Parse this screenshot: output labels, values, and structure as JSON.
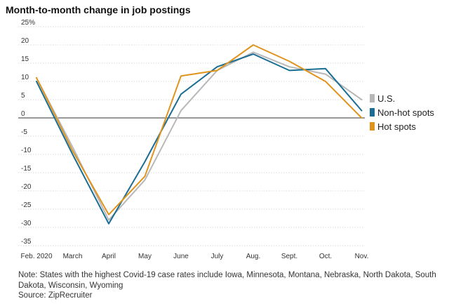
{
  "title": "Month-to-month change in job postings",
  "note": "Note: States with the highest Covid-19 case rates include Iowa, Minnesota, Montana, Nebraska, North Dakota, South Dakota, Wisconsin, Wyoming",
  "source": "Source: ZipRecruiter",
  "chart_data": {
    "type": "line",
    "title": "Month-to-month change in job postings",
    "categories": [
      "Feb. 2020",
      "March",
      "April",
      "May",
      "June",
      "July",
      "Aug.",
      "Sept.",
      "Oct.",
      "Nov."
    ],
    "y_ticks": [
      25,
      20,
      15,
      10,
      5,
      0,
      -5,
      -10,
      -15,
      -20,
      -25,
      -30,
      -35
    ],
    "y_tick_labels": [
      "25%",
      "20",
      "15",
      "10",
      "5",
      "0",
      "-5",
      "-10",
      "-15",
      "-20",
      "-25",
      "-30",
      "-35"
    ],
    "ylim": [
      -35,
      25
    ],
    "grid": true,
    "legend_position": "right",
    "series": [
      {
        "name": "U.S.",
        "color": "#b8b8b8",
        "values": [
          11,
          -8,
          -28,
          -17,
          2,
          13,
          18,
          14,
          12,
          5
        ]
      },
      {
        "name": "Non-hot spots",
        "color": "#1a6e94",
        "values": [
          10,
          -10,
          -29,
          -12,
          6.5,
          14,
          17.5,
          13,
          13.5,
          2
        ]
      },
      {
        "name": "Hot spots",
        "color": "#e0941e",
        "values": [
          11,
          -9,
          -26.5,
          -16,
          11.5,
          13,
          20,
          15.5,
          10,
          0
        ]
      }
    ]
  }
}
